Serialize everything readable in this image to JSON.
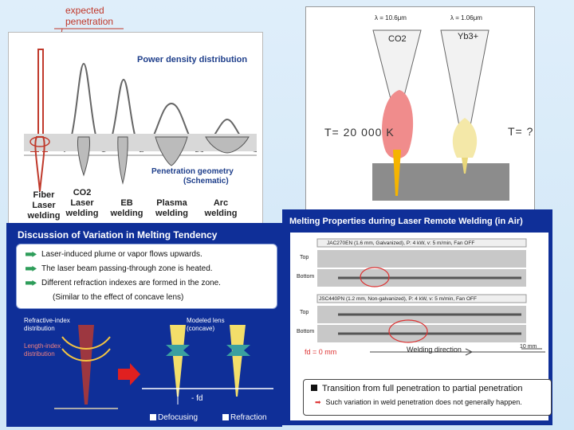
{
  "annotation": {
    "expected_line1": "expected",
    "expected_line2": "penetration"
  },
  "left_panel": {
    "power_title": "Power density distribution",
    "penetration_title_1": "Penetration geometry",
    "penetration_title_2": "(Schematic)",
    "welding_types": [
      {
        "line1": "Fiber",
        "line2": "Laser",
        "line3": "welding"
      },
      {
        "line1": "CO2",
        "line2": "Laser",
        "line3": "welding"
      },
      {
        "line1": "EB",
        "line2": "welding"
      },
      {
        "line1": "Plasma",
        "line2": "welding"
      },
      {
        "line1": "Arc",
        "line2": "welding"
      }
    ]
  },
  "right_top_panel": {
    "lambda_co2": "λ = 10.6μm",
    "lambda_yb": "λ = 1.06μm",
    "co2_label": "CO2",
    "yb_label": "Yb3+",
    "temp_left": "T= 20 000 K",
    "temp_right": "T= ?"
  },
  "discussion": {
    "title": "Discussion of Variation in Melting Tendency",
    "bullets": [
      "Laser-induced plume or vapor flows upwards.",
      "The laser beam passing-through zone is heated.",
      "Different refraction indexes are formed in the zone."
    ],
    "similar": "(Similar to the effect of concave lens)",
    "refractive_dist": "Refractive-index distribution",
    "length_dist": "Length-index distribution",
    "modeled_lens": "Modeled lens (concave)",
    "fd_label": "- fd",
    "legend_defocusing": "Defocusing",
    "legend_refraction": "Refraction"
  },
  "melting": {
    "title": "Melting Properties during Laser Remote Welding",
    "title_suffix": "(in Air)",
    "spec1": "JAC270EN (1.6 mm, Galvanized), P: 4 kW, v: 5 m/min, Fan OFF",
    "spec2": "JSC440PN (1.2 mm, Non-galvanized), P: 4 kW, v: 5 m/min, Fan OFF",
    "row_top1": "Top",
    "row_bottom1": "Bottom",
    "row_top2": "Top",
    "row_bottom2": "Bottom",
    "focus": "fd = 0 mm",
    "direction": "Welding direction",
    "scale": "10 mm",
    "transition": "Transition from full penetration to partial penetration",
    "note": "Such variation in weld penetration does not generally happen."
  }
}
